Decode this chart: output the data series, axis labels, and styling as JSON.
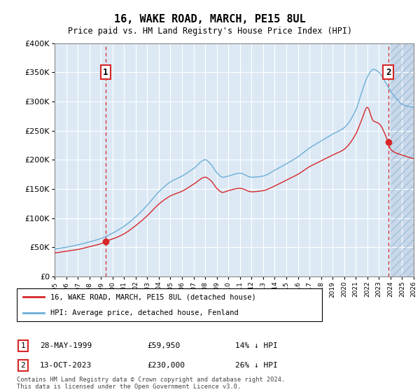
{
  "title": "16, WAKE ROAD, MARCH, PE15 8UL",
  "subtitle": "Price paid vs. HM Land Registry's House Price Index (HPI)",
  "background_color": "#dce9f5",
  "plot_bg_color": "#dce9f5",
  "grid_color": "#ffffff",
  "ylim": [
    0,
    400000
  ],
  "yticks": [
    0,
    50000,
    100000,
    150000,
    200000,
    250000,
    300000,
    350000,
    400000
  ],
  "xlim": [
    1995,
    2026
  ],
  "xticks": [
    1995,
    1996,
    1997,
    1998,
    1999,
    2000,
    2001,
    2002,
    2003,
    2004,
    2005,
    2006,
    2007,
    2008,
    2009,
    2010,
    2011,
    2012,
    2013,
    2014,
    2015,
    2016,
    2017,
    2018,
    2019,
    2020,
    2021,
    2022,
    2023,
    2024,
    2025,
    2026
  ],
  "sale1_x": 1999.4,
  "sale1_y": 59950,
  "sale1_label": "1",
  "sale1_date": "28-MAY-1999",
  "sale1_price": "£59,950",
  "sale1_hpi": "14% ↓ HPI",
  "sale2_x": 2023.8,
  "sale2_y": 230000,
  "sale2_label": "2",
  "sale2_date": "13-OCT-2023",
  "sale2_price": "£230,000",
  "sale2_hpi": "26% ↓ HPI",
  "hpi_line_color": "#6baed6",
  "sale_line_color": "#d62728",
  "legend_label_sale": "16, WAKE ROAD, MARCH, PE15 8UL (detached house)",
  "legend_label_hpi": "HPI: Average price, detached house, Fenland",
  "footer": "Contains HM Land Registry data © Crown copyright and database right 2024.\nThis data is licensed under the Open Government Licence v3.0.",
  "hatch_start": 2024.0
}
